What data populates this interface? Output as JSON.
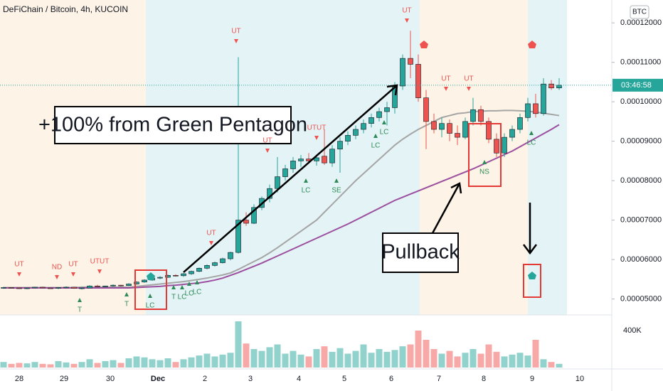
{
  "chart_data": {
    "type": "candlestick",
    "title": "DeFiChain / Bitcoin, 4h, KUCOIN",
    "currency": "BTC",
    "ylim": [
      4.65e-05,
      0.0001258
    ],
    "yticks": [
      {
        "value": 5e-05,
        "label": "0.00005000"
      },
      {
        "value": 6e-05,
        "label": "0.00006000"
      },
      {
        "value": 7e-05,
        "label": "0.00007000"
      },
      {
        "value": 8e-05,
        "label": "0.00008000"
      },
      {
        "value": 9e-05,
        "label": "0.00009000"
      },
      {
        "value": 0.0001,
        "label": "0.00010000"
      },
      {
        "value": 0.00011,
        "label": "0.00011000"
      },
      {
        "value": 0.00012,
        "label": "0.00012000"
      }
    ],
    "date_labels": [
      "28",
      "29",
      "30",
      "Dec",
      "2",
      "3",
      "4",
      "5",
      "6",
      "7",
      "8",
      "9",
      "10"
    ],
    "countdown": "03:46:58",
    "volume_ticks": [
      {
        "value": 400000,
        "label": "400K"
      }
    ],
    "up_color": "#26a69a",
    "down_color": "#ef5350",
    "ohlc": [
      [
        5.28e-05,
        5.31e-05,
        5.26e-05,
        5.29e-05
      ],
      [
        5.29e-05,
        5.3e-05,
        5.27e-05,
        5.28e-05
      ],
      [
        5.28e-05,
        5.3e-05,
        5.26e-05,
        5.27e-05
      ],
      [
        5.27e-05,
        5.29e-05,
        5.25e-05,
        5.28e-05
      ],
      [
        5.28e-05,
        5.31e-05,
        5.27e-05,
        5.3e-05
      ],
      [
        5.3e-05,
        5.31e-05,
        5.27e-05,
        5.28e-05
      ],
      [
        5.28e-05,
        5.29e-05,
        5.26e-05,
        5.27e-05
      ],
      [
        5.27e-05,
        5.3e-05,
        5.25e-05,
        5.29e-05
      ],
      [
        5.29e-05,
        5.32e-05,
        5.28e-05,
        5.3e-05
      ],
      [
        5.3e-05,
        5.31e-05,
        5.26e-05,
        5.27e-05
      ],
      [
        5.27e-05,
        5.3e-05,
        5.24e-05,
        5.28e-05
      ],
      [
        5.28e-05,
        5.35e-05,
        5.27e-05,
        5.33e-05
      ],
      [
        5.33e-05,
        5.36e-05,
        5.3e-05,
        5.31e-05
      ],
      [
        5.31e-05,
        5.34e-05,
        5.29e-05,
        5.33e-05
      ],
      [
        5.33e-05,
        5.37e-05,
        5.31e-05,
        5.35e-05
      ],
      [
        5.35e-05,
        5.36e-05,
        5.32e-05,
        5.34e-05
      ],
      [
        5.34e-05,
        5.4e-05,
        5.33e-05,
        5.38e-05
      ],
      [
        5.38e-05,
        5.45e-05,
        5.36e-05,
        5.43e-05
      ],
      [
        5.43e-05,
        5.5e-05,
        5.41e-05,
        5.48e-05
      ],
      [
        5.48e-05,
        5.56e-05,
        5.46e-05,
        5.53e-05
      ],
      [
        5.53e-05,
        5.58e-05,
        5.5e-05,
        5.55e-05
      ],
      [
        5.55e-05,
        5.62e-05,
        5.53e-05,
        5.6e-05
      ],
      [
        5.6e-05,
        5.63e-05,
        5.57e-05,
        5.59e-05
      ],
      [
        5.59e-05,
        5.66e-05,
        5.56e-05,
        5.64e-05
      ],
      [
        5.64e-05,
        5.72e-05,
        5.61e-05,
        5.7e-05
      ],
      [
        5.7e-05,
        5.8e-05,
        5.68e-05,
        5.78e-05
      ],
      [
        5.78e-05,
        5.88e-05,
        5.75e-05,
        5.85e-05
      ],
      [
        5.85e-05,
        5.95e-05,
        5.82e-05,
        5.92e-05
      ],
      [
        5.92e-05,
        6.05e-05,
        5.9e-05,
        6.02e-05
      ],
      [
        6.02e-05,
        6.2e-05,
        5.98e-05,
        6.18e-05
      ],
      [
        6.18e-05,
        0.0001113,
        6.15e-05,
        7e-05
      ],
      [
        7e-05,
        7.2e-05,
        6.85e-05,
        6.92e-05
      ],
      [
        6.92e-05,
        7.4e-05,
        6.9e-05,
        7.32e-05
      ],
      [
        7.32e-05,
        7.6e-05,
        7.25e-05,
        7.55e-05
      ],
      [
        7.55e-05,
        7.9e-05,
        7.45e-05,
        7.8e-05
      ],
      [
        7.8e-05,
        8.6e-05,
        7.7e-05,
        8.1e-05
      ],
      [
        8.1e-05,
        8.4e-05,
        8e-05,
        8.3e-05
      ],
      [
        8.3e-05,
        8.6e-05,
        8.2e-05,
        8.5e-05
      ],
      [
        8.5e-05,
        8.65e-05,
        8.35e-05,
        8.55e-05
      ],
      [
        8.55e-05,
        8.7e-05,
        8.45e-05,
        8.5e-05
      ],
      [
        8.5e-05,
        8.62e-05,
        8.38e-05,
        8.58e-05
      ],
      [
        8.62e-05,
        9.3e-05,
        8.4e-05,
        8.45e-05
      ],
      [
        8.45e-05,
        8.9e-05,
        8.35e-05,
        8.8e-05
      ],
      [
        8.8e-05,
        9.1e-05,
        8.2e-05,
        9e-05
      ],
      [
        9e-05,
        9.25e-05,
        8.9e-05,
        9.15e-05
      ],
      [
        9.15e-05,
        9.4e-05,
        9.05e-05,
        9.3e-05
      ],
      [
        9.3e-05,
        9.55e-05,
        9.2e-05,
        9.45e-05
      ],
      [
        9.45e-05,
        9.7e-05,
        9.35e-05,
        9.6e-05
      ],
      [
        9.6e-05,
        9.85e-05,
        9.5e-05,
        9.75e-05
      ],
      [
        9.75e-05,
        0.0001,
        9.4e-05,
        9.85e-05
      ],
      [
        9.85e-05,
        0.000105,
        9.7e-05,
        0.000104
      ],
      [
        0.000104,
        0.000112,
        0.000103,
        0.000111
      ],
      [
        0.000111,
        0.000118,
        0.000106,
        0.0001095
      ],
      [
        0.0001095,
        0.000112,
        0.0001,
        0.000101
      ],
      [
        0.000101,
        0.000103,
        8.8e-05,
        9.5e-05
      ],
      [
        9.5e-05,
        9.7e-05,
        9.2e-05,
        9.3e-05
      ],
      [
        9.3e-05,
        9.6e-05,
        9.1e-05,
        9.45e-05
      ],
      [
        9.45e-05,
        9.55e-05,
        9e-05,
        9.2e-05
      ],
      [
        9.2e-05,
        9.4e-05,
        8.9e-05,
        9.1e-05
      ],
      [
        9.1e-05,
        9.6e-05,
        9.05e-05,
        9.5e-05
      ],
      [
        9.5e-05,
        0.000101,
        9.4e-05,
        9.8e-05
      ],
      [
        9.8e-05,
        9.9e-05,
        9.4e-05,
        9.5e-05
      ],
      [
        9.5e-05,
        9.6e-05,
        8.95e-05,
        9.05e-05
      ],
      [
        9.05e-05,
        9.2e-05,
        8.6e-05,
        8.7e-05
      ],
      [
        8.7e-05,
        9.2e-05,
        8.6e-05,
        9.1e-05
      ],
      [
        9.1e-05,
        9.4e-05,
        9e-05,
        9.3e-05
      ],
      [
        9.3e-05,
        9.7e-05,
        9.2e-05,
        9.6e-05
      ],
      [
        9.6e-05,
        0.000101,
        9.5e-05,
        9.95e-05
      ],
      [
        9.95e-05,
        0.000102,
        9.6e-05,
        9.7e-05
      ],
      [
        9.7e-05,
        0.000106,
        9.65e-05,
        0.0001045
      ],
      [
        0.0001045,
        0.0001055,
        0.000103,
        0.0001035
      ],
      [
        0.0001035,
        0.000106,
        0.000103,
        0.0001042
      ]
    ],
    "volume": [
      60000,
      40000,
      50000,
      45000,
      60000,
      40000,
      35000,
      70000,
      55000,
      40000,
      60000,
      90000,
      50000,
      70000,
      80000,
      50000,
      100000,
      120000,
      110000,
      90000,
      80000,
      100000,
      60000,
      90000,
      110000,
      130000,
      150000,
      120000,
      140000,
      160000,
      500000,
      260000,
      200000,
      180000,
      220000,
      250000,
      150000,
      180000,
      140000,
      120000,
      200000,
      230000,
      170000,
      210000,
      150000,
      180000,
      250000,
      160000,
      200000,
      170000,
      190000,
      230000,
      250000,
      400000,
      300000,
      200000,
      150000,
      180000,
      120000,
      160000,
      200000,
      150000,
      250000,
      170000,
      120000,
      140000,
      160000,
      130000,
      300000,
      90000,
      60000,
      40000
    ],
    "ma_fast": {
      "color": "#a5a5a5",
      "values": [
        5.29e-05,
        5.29e-05,
        5.29e-05,
        5.29e-05,
        5.29e-05,
        5.29e-05,
        5.29e-05,
        5.29e-05,
        5.29e-05,
        5.29e-05,
        5.3e-05,
        5.3e-05,
        5.3e-05,
        5.3e-05,
        5.3e-05,
        5.3e-05,
        5.3e-05,
        5.32e-05,
        5.34e-05,
        5.36e-05,
        5.38e-05,
        5.4e-05,
        5.42e-05,
        5.44e-05,
        5.47e-05,
        5.5e-05,
        5.53e-05,
        5.57e-05,
        5.61e-05,
        5.66e-05,
        5.75e-05,
        5.85e-05,
        5.95e-05,
        6.05e-05,
        6.17e-05,
        6.3e-05,
        6.44e-05,
        6.58e-05,
        6.72e-05,
        6.86e-05,
        7e-05,
        7.2e-05,
        7.4e-05,
        7.6e-05,
        7.8e-05,
        8e-05,
        8.18e-05,
        8.36e-05,
        8.54e-05,
        8.72e-05,
        8.9e-05,
        9.05e-05,
        9.18e-05,
        9.3e-05,
        9.4e-05,
        9.5e-05,
        9.6e-05,
        9.65e-05,
        9.7e-05,
        9.72e-05,
        9.75e-05,
        9.76e-05,
        9.77e-05,
        9.77e-05,
        9.78e-05,
        9.78e-05,
        9.77e-05,
        9.76e-05,
        9.74e-05,
        9.71e-05,
        9.68e-05,
        9.65e-05
      ]
    },
    "ma_slow": {
      "color": "#9c4f9e",
      "values": [
        5.28e-05,
        5.28e-05,
        5.28e-05,
        5.28e-05,
        5.28e-05,
        5.28e-05,
        5.28e-05,
        5.28e-05,
        5.28e-05,
        5.28e-05,
        5.28e-05,
        5.28e-05,
        5.28e-05,
        5.28e-05,
        5.28e-05,
        5.28e-05,
        5.28e-05,
        5.29e-05,
        5.3e-05,
        5.31e-05,
        5.32e-05,
        5.34e-05,
        5.35e-05,
        5.37e-05,
        5.39e-05,
        5.41e-05,
        5.44e-05,
        5.48e-05,
        5.53e-05,
        5.6e-05,
        5.67e-05,
        5.75e-05,
        5.83e-05,
        5.91e-05,
        6e-05,
        6.09e-05,
        6.18e-05,
        6.27e-05,
        6.36e-05,
        6.45e-05,
        6.54e-05,
        6.63e-05,
        6.72e-05,
        6.81e-05,
        6.9e-05,
        7e-05,
        7.1e-05,
        7.2e-05,
        7.3e-05,
        7.4e-05,
        7.5e-05,
        7.58e-05,
        7.66e-05,
        7.74e-05,
        7.82e-05,
        7.9e-05,
        7.98e-05,
        8.06e-05,
        8.14e-05,
        8.22e-05,
        8.3e-05,
        8.39e-05,
        8.48e-05,
        8.57e-05,
        8.66e-05,
        8.75e-05,
        8.86e-05,
        8.97e-05,
        9.08e-05,
        9.19e-05,
        9.3e-05,
        9.42e-05
      ]
    },
    "signals": [
      "UT",
      "ND",
      "UT",
      "UTUT",
      "T",
      "T",
      "LC",
      "T",
      "LC",
      "LC",
      "LC",
      "UT",
      "UT",
      "UT",
      "UTUT",
      "LC",
      "SE",
      "LC",
      "LC",
      "UT",
      "UT",
      "UT",
      "NS",
      "LC"
    ],
    "callouts": [
      "+100% from Green Pentagon",
      "Pullback"
    ]
  }
}
